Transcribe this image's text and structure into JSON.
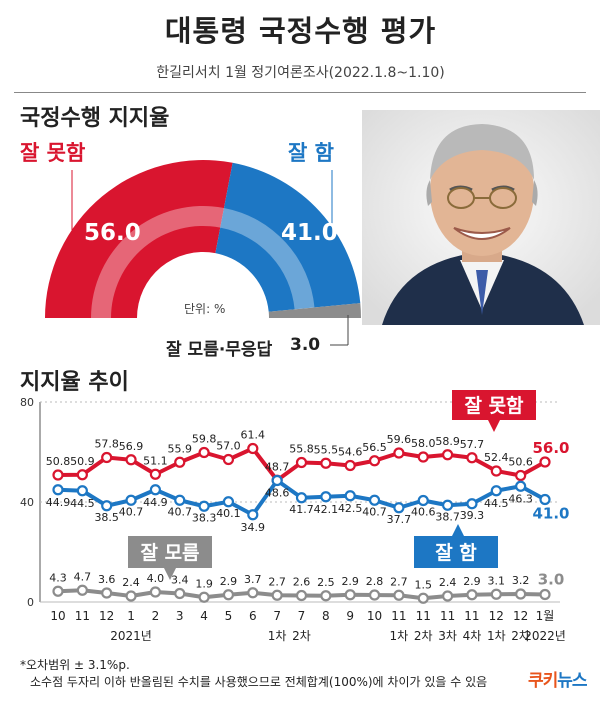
{
  "header": {
    "title": "대통령 국정수행 평가",
    "subtitle": "한길리서치 1월 정기여론조사(2022.1.8~1.10)"
  },
  "approval": {
    "section_title": "국정수행 지지율",
    "bad_label": "잘 못함",
    "bad_value": "56.0",
    "good_label": "잘 함",
    "good_value": "41.0",
    "dontknow_label": "잘 모름·무응답",
    "dontknow_value": "3.0",
    "unit": "단위: %",
    "colors": {
      "bad": "#d9152f",
      "good": "#1d77c4",
      "dontknow": "#8c8c8c"
    }
  },
  "trend": {
    "section_title": "지지율 추이",
    "series_labels": {
      "bad": "잘 못함",
      "good": "잘 함",
      "dontknow": "잘 모름"
    }
  },
  "chart_data": [
    {
      "type": "pie",
      "title": "국정수행 지지율",
      "categories": [
        "잘 못함",
        "잘 함",
        "잘 모름·무응답"
      ],
      "values": [
        56.0,
        41.0,
        3.0
      ],
      "colors": [
        "#d9152f",
        "#1d77c4",
        "#8c8c8c"
      ],
      "note": "단위: %"
    },
    {
      "type": "line",
      "title": "지지율 추이",
      "categories": [
        "10",
        "11",
        "12",
        "1",
        "2",
        "3",
        "4",
        "5",
        "6",
        "7 1차",
        "7 2차",
        "8",
        "9",
        "10",
        "11 1차",
        "11 2차",
        "11 3차",
        "11 4차",
        "12 1차",
        "12 2차",
        "1월"
      ],
      "x_ticks_line1": [
        "10",
        "11",
        "12",
        "1",
        "2",
        "3",
        "4",
        "5",
        "6",
        "7",
        "7",
        "8",
        "9",
        "10",
        "11",
        "11",
        "11",
        "11",
        "12",
        "12",
        "1월"
      ],
      "x_ticks_line2": [
        "",
        "",
        "",
        "2021년",
        "",
        "",
        "",
        "",
        "",
        "1차",
        "2차",
        "",
        "",
        "",
        "1차",
        "2차",
        "3차",
        "4차",
        "1차",
        "2차",
        "2022년"
      ],
      "y_ticks": [
        0,
        40,
        80
      ],
      "ylim": [
        0,
        80
      ],
      "series": [
        {
          "name": "잘 못함",
          "color": "#d9152f",
          "values": [
            50.8,
            50.9,
            57.8,
            56.9,
            51.1,
            55.9,
            59.8,
            57.0,
            61.4,
            48.7,
            55.8,
            55.5,
            54.6,
            56.5,
            59.6,
            58.0,
            58.9,
            57.7,
            52.4,
            50.6,
            56.0
          ],
          "labels": [
            "50.8",
            "50.9",
            "57.8",
            "56.9",
            "51.1",
            "55.9",
            "59.8",
            "57.0",
            "61.4",
            "48.7",
            "55.8",
            "55.5",
            "54.6",
            "56.5",
            "59.6",
            "58.0",
            "58.9",
            "57.7",
            "52.4",
            "50.6",
            "56.0"
          ]
        },
        {
          "name": "잘 함",
          "color": "#1d77c4",
          "values": [
            44.9,
            44.5,
            38.5,
            40.7,
            44.9,
            40.7,
            38.3,
            40.1,
            34.9,
            48.6,
            41.7,
            42.1,
            42.5,
            40.7,
            37.7,
            40.6,
            38.7,
            39.3,
            44.5,
            46.3,
            41.0
          ],
          "labels": [
            "44.9",
            "44.5",
            "38.5",
            "40.7",
            "44.9",
            "40.7",
            "38.3",
            "40.1",
            "34.9",
            "48.6",
            "41.7",
            "42.1",
            "42.5",
            "40.7",
            "37.7",
            "40.6",
            "38.7",
            "39.3",
            "44.5",
            "46.3",
            "41.0"
          ]
        },
        {
          "name": "잘 모름",
          "color": "#8c8c8c",
          "values": [
            4.3,
            4.7,
            3.6,
            2.4,
            4.0,
            3.4,
            1.9,
            2.9,
            3.7,
            2.7,
            2.6,
            2.5,
            2.9,
            2.8,
            2.7,
            1.5,
            2.4,
            2.9,
            3.1,
            3.2,
            3.0
          ],
          "labels": [
            "4.3",
            "4.7",
            "3.6",
            "2.4",
            "4.0",
            "3.4",
            "1.9",
            "2.9",
            "3.7",
            "2.7",
            "2.6",
            "2.5",
            "2.9",
            "2.8",
            "2.7",
            "1.5",
            "2.4",
            "2.9",
            "3.1",
            "3.2",
            "3.0"
          ]
        }
      ]
    }
  ],
  "footer": {
    "note1": "*오차범위 ± 3.1%p.",
    "note2": "소수점 두자리 이하 반올림된 수치를 사용했으므로 전체합계(100%)에 차이가 있을 수 있음",
    "logo_a": "쿠키",
    "logo_b": "뉴스"
  }
}
